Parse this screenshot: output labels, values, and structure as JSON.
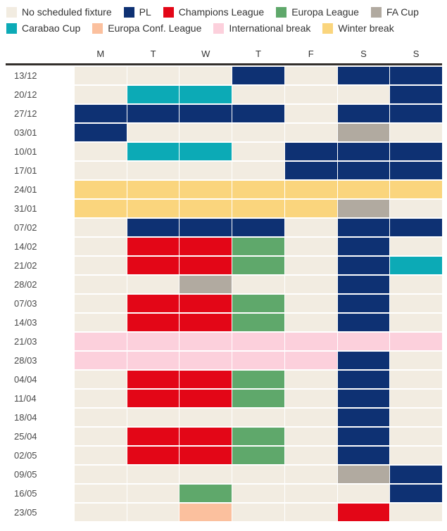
{
  "chart_data": {
    "type": "heatmap",
    "description": "Weekly football fixture calendar: rows are week start dates, columns are days of week, cell color encodes competition scheduled that day",
    "legend_position": "top",
    "columns": [
      "M",
      "T",
      "W",
      "T",
      "F",
      "S",
      "S"
    ],
    "rows": [
      "13/12",
      "20/12",
      "27/12",
      "03/01",
      "10/01",
      "17/01",
      "24/01",
      "31/01",
      "07/02",
      "14/02",
      "21/02",
      "28/02",
      "07/03",
      "14/03",
      "21/03",
      "28/03",
      "04/04",
      "11/04",
      "18/04",
      "25/04",
      "02/05",
      "09/05",
      "16/05",
      "23/05"
    ],
    "values": [
      [
        "none",
        "none",
        "none",
        "pl",
        "none",
        "pl",
        "pl"
      ],
      [
        "none",
        "carabao",
        "carabao",
        "none",
        "none",
        "none",
        "pl"
      ],
      [
        "pl",
        "pl",
        "pl",
        "pl",
        "none",
        "pl",
        "pl"
      ],
      [
        "pl",
        "none",
        "none",
        "none",
        "none",
        "facup",
        "none"
      ],
      [
        "none",
        "carabao",
        "carabao",
        "none",
        "pl",
        "pl",
        "pl"
      ],
      [
        "none",
        "none",
        "none",
        "none",
        "pl",
        "pl",
        "pl"
      ],
      [
        "winter",
        "winter",
        "winter",
        "winter",
        "winter",
        "winter",
        "winter"
      ],
      [
        "winter",
        "winter",
        "winter",
        "winter",
        "winter",
        "facup",
        "none"
      ],
      [
        "none",
        "pl",
        "pl",
        "pl",
        "none",
        "pl",
        "pl"
      ],
      [
        "none",
        "ucl",
        "ucl",
        "uel",
        "none",
        "pl",
        "none"
      ],
      [
        "none",
        "ucl",
        "ucl",
        "uel",
        "none",
        "pl",
        "carabao"
      ],
      [
        "none",
        "none",
        "facup",
        "none",
        "none",
        "pl",
        "none"
      ],
      [
        "none",
        "ucl",
        "ucl",
        "uel",
        "none",
        "pl",
        "none"
      ],
      [
        "none",
        "ucl",
        "ucl",
        "uel",
        "none",
        "pl",
        "none"
      ],
      [
        "intl",
        "intl",
        "intl",
        "intl",
        "intl",
        "intl",
        "intl"
      ],
      [
        "intl",
        "intl",
        "intl",
        "intl",
        "intl",
        "pl",
        "none"
      ],
      [
        "none",
        "ucl",
        "ucl",
        "uel",
        "none",
        "pl",
        "none"
      ],
      [
        "none",
        "ucl",
        "ucl",
        "uel",
        "none",
        "pl",
        "none"
      ],
      [
        "none",
        "none",
        "none",
        "none",
        "none",
        "pl",
        "none"
      ],
      [
        "none",
        "ucl",
        "ucl",
        "uel",
        "none",
        "pl",
        "none"
      ],
      [
        "none",
        "ucl",
        "ucl",
        "uel",
        "none",
        "pl",
        "none"
      ],
      [
        "none",
        "none",
        "none",
        "none",
        "none",
        "facup",
        "pl"
      ],
      [
        "none",
        "none",
        "uel",
        "none",
        "none",
        "none",
        "pl"
      ],
      [
        "none",
        "none",
        "uecl",
        "none",
        "none",
        "ucl",
        "none"
      ]
    ],
    "legend": [
      {
        "key": "none",
        "label": "No scheduled fixture",
        "color": "#f2ece1"
      },
      {
        "key": "pl",
        "label": "PL",
        "color": "#0e3173"
      },
      {
        "key": "ucl",
        "label": "Champions League",
        "color": "#e30617"
      },
      {
        "key": "uel",
        "label": "Europa League",
        "color": "#5fa86b"
      },
      {
        "key": "facup",
        "label": "FA Cup",
        "color": "#b1aaa0"
      },
      {
        "key": "carabao",
        "label": "Carabao Cup",
        "color": "#0caab6"
      },
      {
        "key": "uecl",
        "label": "Europa Conf. League",
        "color": "#fbc09e"
      },
      {
        "key": "intl",
        "label": "International break",
        "color": "#fcd0dc"
      },
      {
        "key": "winter",
        "label": "Winter break",
        "color": "#fad57d"
      }
    ]
  },
  "colors": {
    "header_rule": "#332f2b",
    "label_text": "#4a4a4a",
    "legend_text": "#333333",
    "background": "#ffffff"
  }
}
